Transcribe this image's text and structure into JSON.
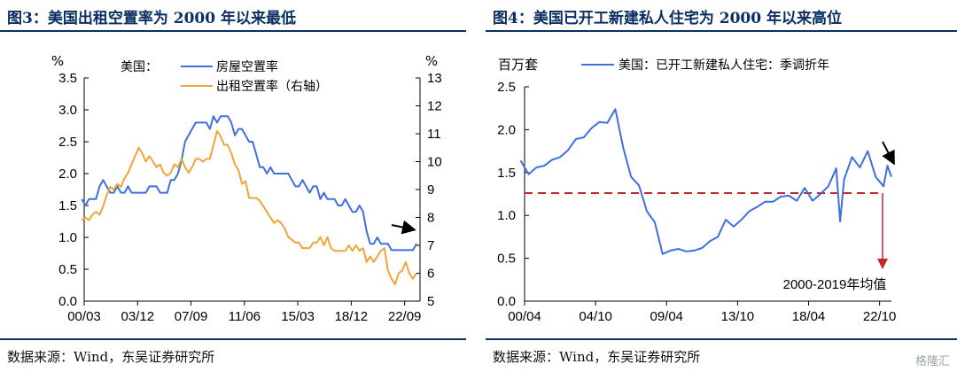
{
  "panels": [
    {
      "title": "图3：美国出租空置率为 2000 年以来最低",
      "source": "数据来源：Wind，东吴证券研究所"
    },
    {
      "title": "图4：美国已开工新建私人住宅为 2000 年以来高位",
      "source": "数据来源：Wind，东吴证券研究所"
    }
  ],
  "watermark": "格隆汇",
  "chart_data": [
    {
      "type": "line",
      "legend_prefix": "美国：",
      "yunit_left": "%",
      "yunit_right": "%",
      "x_ticks": [
        "00/03",
        "03/12",
        "07/09",
        "11/06",
        "15/03",
        "18/12",
        "22/09"
      ],
      "x_tick_values": [
        2000.17,
        2003.92,
        2007.67,
        2011.42,
        2015.17,
        2018.92,
        2022.67
      ],
      "xlim": [
        2000.17,
        2023.75
      ],
      "ylim_left": [
        0,
        3.5
      ],
      "yticks_left": [
        "0.0",
        "0.5",
        "1.0",
        "1.5",
        "2.0",
        "2.5",
        "3.0",
        "3.5"
      ],
      "ylim_right": [
        5,
        13
      ],
      "yticks_right": [
        "5",
        "6",
        "7",
        "8",
        "9",
        "10",
        "11",
        "12",
        "13"
      ],
      "legend_position": "top",
      "colors": {
        "homeowner": "#3f6fe0",
        "rental": "#f0a43a",
        "arrow": "#000000"
      },
      "series": [
        {
          "name": "房屋空置率",
          "axis": "left",
          "x": [
            2000.0,
            2000.25,
            2000.5,
            2000.75,
            2001.0,
            2001.25,
            2001.5,
            2001.75,
            2002.0,
            2002.25,
            2002.5,
            2002.75,
            2003.0,
            2003.25,
            2003.5,
            2003.75,
            2004.0,
            2004.25,
            2004.5,
            2004.75,
            2005.0,
            2005.25,
            2005.5,
            2005.75,
            2006.0,
            2006.25,
            2006.5,
            2006.75,
            2007.0,
            2007.25,
            2007.5,
            2007.75,
            2008.0,
            2008.25,
            2008.5,
            2008.75,
            2009.0,
            2009.25,
            2009.5,
            2009.75,
            2010.0,
            2010.25,
            2010.5,
            2010.75,
            2011.0,
            2011.25,
            2011.5,
            2011.75,
            2012.0,
            2012.25,
            2012.5,
            2012.75,
            2013.0,
            2013.25,
            2013.5,
            2013.75,
            2014.0,
            2014.25,
            2014.5,
            2014.75,
            2015.0,
            2015.25,
            2015.5,
            2015.75,
            2016.0,
            2016.25,
            2016.5,
            2016.75,
            2017.0,
            2017.25,
            2017.5,
            2017.75,
            2018.0,
            2018.25,
            2018.5,
            2018.75,
            2019.0,
            2019.25,
            2019.5,
            2019.75,
            2020.0,
            2020.25,
            2020.5,
            2020.75,
            2021.0,
            2021.25,
            2021.5,
            2021.75,
            2022.0,
            2022.25,
            2022.5,
            2022.75,
            2023.0,
            2023.25,
            2023.5
          ],
          "values": [
            1.6,
            1.5,
            1.6,
            1.6,
            1.6,
            1.8,
            1.9,
            1.8,
            1.7,
            1.7,
            1.8,
            1.7,
            1.7,
            1.8,
            1.7,
            1.7,
            1.7,
            1.7,
            1.7,
            1.8,
            1.8,
            1.8,
            1.7,
            1.7,
            1.7,
            1.9,
            1.9,
            2.0,
            2.2,
            2.5,
            2.6,
            2.7,
            2.8,
            2.8,
            2.8,
            2.8,
            2.7,
            2.9,
            2.8,
            2.9,
            2.9,
            2.9,
            2.8,
            2.6,
            2.7,
            2.7,
            2.6,
            2.5,
            2.5,
            2.3,
            2.1,
            2.1,
            2.0,
            2.1,
            2.0,
            2.0,
            2.0,
            2.0,
            2.0,
            1.9,
            1.8,
            1.8,
            1.9,
            1.8,
            1.7,
            1.8,
            1.8,
            1.6,
            1.7,
            1.6,
            1.6,
            1.6,
            1.5,
            1.5,
            1.6,
            1.5,
            1.4,
            1.4,
            1.5,
            1.4,
            1.1,
            0.9,
            0.9,
            1.0,
            0.9,
            0.9,
            0.9,
            0.8,
            0.8,
            0.8,
            0.8,
            0.8,
            0.8,
            0.8,
            0.9
          ]
        },
        {
          "name": "出租空置率（右轴）",
          "axis": "right",
          "x": [
            2000.0,
            2000.25,
            2000.5,
            2000.75,
            2001.0,
            2001.25,
            2001.5,
            2001.75,
            2002.0,
            2002.25,
            2002.5,
            2002.75,
            2003.0,
            2003.25,
            2003.5,
            2003.75,
            2004.0,
            2004.25,
            2004.5,
            2004.75,
            2005.0,
            2005.25,
            2005.5,
            2005.75,
            2006.0,
            2006.25,
            2006.5,
            2006.75,
            2007.0,
            2007.25,
            2007.5,
            2007.75,
            2008.0,
            2008.25,
            2008.5,
            2008.75,
            2009.0,
            2009.25,
            2009.5,
            2009.75,
            2010.0,
            2010.25,
            2010.5,
            2010.75,
            2011.0,
            2011.25,
            2011.5,
            2011.75,
            2012.0,
            2012.25,
            2012.5,
            2012.75,
            2013.0,
            2013.25,
            2013.5,
            2013.75,
            2014.0,
            2014.25,
            2014.5,
            2014.75,
            2015.0,
            2015.25,
            2015.5,
            2015.75,
            2016.0,
            2016.25,
            2016.5,
            2016.75,
            2017.0,
            2017.25,
            2017.5,
            2017.75,
            2018.0,
            2018.25,
            2018.5,
            2018.75,
            2019.0,
            2019.25,
            2019.5,
            2019.75,
            2020.0,
            2020.25,
            2020.5,
            2020.75,
            2021.0,
            2021.25,
            2021.5,
            2021.75,
            2022.0,
            2022.25,
            2022.5,
            2022.75,
            2023.0,
            2023.25,
            2023.5
          ],
          "values": [
            7.9,
            8.0,
            7.9,
            8.1,
            8.2,
            8.1,
            8.4,
            8.8,
            9.1,
            9.0,
            9.2,
            9.1,
            9.4,
            9.6,
            9.9,
            10.2,
            10.5,
            10.3,
            10.0,
            10.2,
            10.0,
            9.8,
            9.9,
            9.6,
            9.5,
            9.6,
            9.9,
            9.8,
            10.1,
            9.8,
            9.6,
            9.8,
            10.1,
            10.1,
            10.0,
            10.1,
            10.1,
            10.6,
            11.1,
            10.9,
            10.6,
            10.6,
            10.3,
            9.9,
            9.7,
            9.2,
            9.3,
            8.7,
            8.7,
            8.7,
            8.6,
            8.4,
            8.2,
            8.0,
            7.8,
            7.9,
            7.8,
            7.6,
            7.3,
            7.2,
            7.1,
            7.1,
            6.9,
            6.9,
            6.9,
            7.1,
            7.1,
            7.3,
            7.0,
            7.3,
            6.9,
            6.8,
            6.8,
            6.8,
            6.8,
            7.0,
            6.8,
            7.0,
            6.8,
            6.9,
            6.4,
            6.6,
            6.4,
            6.6,
            6.8,
            6.9,
            6.1,
            5.8,
            5.6,
            6.0,
            6.1,
            6.4,
            6.0,
            5.8,
            6.0
          ]
        }
      ]
    },
    {
      "type": "line",
      "yunit": "百万套",
      "x_ticks": [
        "00/04",
        "04/10",
        "09/04",
        "13/10",
        "18/04",
        "22/10"
      ],
      "x_tick_values": [
        2000.25,
        2004.75,
        2009.25,
        2013.75,
        2018.25,
        2022.75
      ],
      "xlim": [
        2000.25,
        2023.5
      ],
      "ylim": [
        0,
        2.5
      ],
      "yticks": [
        "0.0",
        "0.5",
        "1.0",
        "1.5",
        "2.0",
        "2.5"
      ],
      "legend_position": "top",
      "colors": {
        "starts": "#3f6fe0",
        "avg": "#c0262d",
        "arrow": "#000000"
      },
      "series": [
        {
          "name": "美国：已开工新建私人住宅：季调折年",
          "x": [
            2000.0,
            2000.5,
            2001.0,
            2001.5,
            2002.0,
            2002.5,
            2003.0,
            2003.5,
            2004.0,
            2004.5,
            2005.0,
            2005.5,
            2006.0,
            2006.5,
            2007.0,
            2007.5,
            2008.0,
            2008.5,
            2009.0,
            2009.5,
            2010.0,
            2010.5,
            2011.0,
            2011.5,
            2012.0,
            2012.5,
            2013.0,
            2013.5,
            2014.0,
            2014.5,
            2015.0,
            2015.5,
            2016.0,
            2016.5,
            2017.0,
            2017.5,
            2018.0,
            2018.5,
            2019.0,
            2019.5,
            2020.0,
            2020.25,
            2020.5,
            2021.0,
            2021.5,
            2022.0,
            2022.5,
            2023.0,
            2023.25,
            2023.5
          ],
          "values": [
            1.64,
            1.48,
            1.56,
            1.58,
            1.65,
            1.68,
            1.76,
            1.89,
            1.91,
            2.02,
            2.09,
            2.08,
            2.24,
            1.79,
            1.45,
            1.35,
            1.05,
            0.92,
            0.55,
            0.59,
            0.61,
            0.58,
            0.59,
            0.62,
            0.7,
            0.75,
            0.95,
            0.87,
            0.95,
            1.05,
            1.1,
            1.16,
            1.16,
            1.22,
            1.23,
            1.17,
            1.32,
            1.17,
            1.25,
            1.34,
            1.55,
            0.93,
            1.42,
            1.68,
            1.56,
            1.75,
            1.45,
            1.34,
            1.58,
            1.45
          ]
        }
      ],
      "reference_line": {
        "label": "2000-2019年均值",
        "value": 1.26
      }
    }
  ]
}
